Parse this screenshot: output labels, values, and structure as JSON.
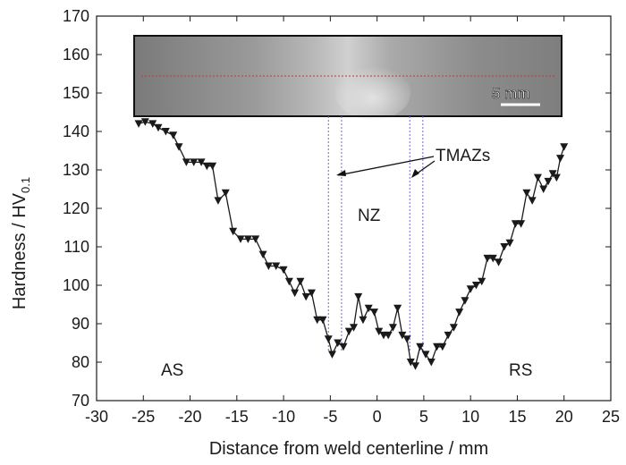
{
  "chart_data": {
    "type": "line",
    "xlabel": "Distance from weld centerline / mm",
    "ylabel": "Hardness / HV",
    "ylabel_sub": "0.1",
    "xlim": [
      -30,
      25
    ],
    "ylim": [
      70,
      170
    ],
    "xticks": [
      -30,
      -25,
      -20,
      -15,
      -10,
      -5,
      0,
      5,
      10,
      15,
      20,
      25
    ],
    "yticks": [
      70,
      80,
      90,
      100,
      110,
      120,
      130,
      140,
      150,
      160,
      170
    ],
    "grid": false,
    "marker": "down-triangle",
    "series": [
      {
        "color": "#1a1a1a",
        "points": [
          [
            -25.5,
            142
          ],
          [
            -24.8,
            142.5
          ],
          [
            -24.0,
            142
          ],
          [
            -23.4,
            141
          ],
          [
            -22.6,
            140
          ],
          [
            -21.8,
            139
          ],
          [
            -21.2,
            136
          ],
          [
            -20.4,
            132
          ],
          [
            -19.6,
            132
          ],
          [
            -18.8,
            132
          ],
          [
            -18.2,
            131
          ],
          [
            -17.6,
            131
          ],
          [
            -17.0,
            122
          ],
          [
            -16.2,
            124
          ],
          [
            -15.4,
            114
          ],
          [
            -14.6,
            112
          ],
          [
            -13.8,
            112
          ],
          [
            -13.0,
            112
          ],
          [
            -12.2,
            108
          ],
          [
            -11.6,
            105
          ],
          [
            -10.8,
            105
          ],
          [
            -10.0,
            104
          ],
          [
            -9.4,
            101
          ],
          [
            -8.8,
            98
          ],
          [
            -8.2,
            101
          ],
          [
            -7.6,
            97
          ],
          [
            -7.0,
            98
          ],
          [
            -6.4,
            91
          ],
          [
            -5.8,
            91
          ],
          [
            -5.2,
            86
          ],
          [
            -4.8,
            82
          ],
          [
            -4.2,
            85
          ],
          [
            -3.6,
            84
          ],
          [
            -3.0,
            88
          ],
          [
            -2.5,
            89
          ],
          [
            -2.0,
            97
          ],
          [
            -1.5,
            91
          ],
          [
            -0.9,
            94
          ],
          [
            -0.3,
            93
          ],
          [
            0.2,
            88
          ],
          [
            0.7,
            87
          ],
          [
            1.2,
            87
          ],
          [
            1.7,
            89
          ],
          [
            2.2,
            94
          ],
          [
            2.7,
            87
          ],
          [
            3.2,
            86
          ],
          [
            3.6,
            80
          ],
          [
            4.1,
            79
          ],
          [
            4.6,
            84
          ],
          [
            5.2,
            82
          ],
          [
            5.8,
            80
          ],
          [
            6.4,
            84
          ],
          [
            7.0,
            84
          ],
          [
            7.6,
            87
          ],
          [
            8.2,
            89
          ],
          [
            8.8,
            93
          ],
          [
            9.4,
            96
          ],
          [
            10.0,
            99
          ],
          [
            10.6,
            100
          ],
          [
            11.2,
            101
          ],
          [
            11.8,
            107
          ],
          [
            12.4,
            107
          ],
          [
            13.0,
            106
          ],
          [
            13.6,
            110
          ],
          [
            14.2,
            111
          ],
          [
            14.8,
            116
          ],
          [
            15.4,
            116
          ],
          [
            16.0,
            124
          ],
          [
            16.6,
            122
          ],
          [
            17.2,
            128
          ],
          [
            17.8,
            125
          ],
          [
            18.3,
            127
          ],
          [
            18.8,
            129
          ],
          [
            19.2,
            128
          ],
          [
            19.6,
            133
          ],
          [
            20.0,
            136
          ]
        ]
      }
    ],
    "vlines": [
      -5.2,
      -3.8,
      3.5,
      4.9
    ],
    "annotations": {
      "as_label": "AS",
      "rs_label": "RS",
      "nz_label": "NZ",
      "tmaz_label": "TMAZs",
      "scale_label": "5 mm"
    }
  },
  "inset": {
    "photo_bg": "#8a8a8a",
    "border": "#111111",
    "centerline_color": "#cc3333",
    "vline_color": "#6a6ad8"
  }
}
